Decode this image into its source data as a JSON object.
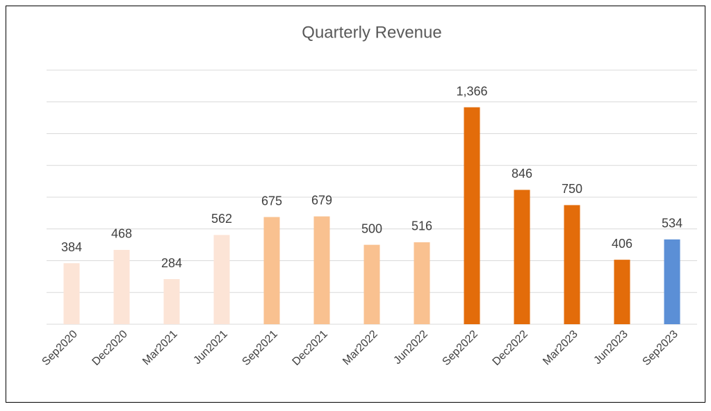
{
  "chart_data": {
    "type": "bar",
    "title": "Quarterly Revenue",
    "categories": [
      "Sep2020",
      "Dec2020",
      "Mar2021",
      "Jun2021",
      "Sep2021",
      "Dec2021",
      "Mar2022",
      "Jun2022",
      "Sep2022",
      "Dec2022",
      "Mar2023",
      "Jun2023",
      "Sep2023"
    ],
    "values": [
      384,
      468,
      284,
      562,
      675,
      679,
      500,
      516,
      1366,
      846,
      750,
      406,
      534
    ],
    "value_labels": [
      "384",
      "468",
      "284",
      "562",
      "675",
      "679",
      "500",
      "516",
      "1,366",
      "846",
      "750",
      "406",
      "534"
    ],
    "colors": [
      "#fce4d6",
      "#fce4d6",
      "#fce4d6",
      "#fce4d6",
      "#f9c190",
      "#f9c190",
      "#f9c190",
      "#f9c190",
      "#e36c0a",
      "#e36c0a",
      "#e36c0a",
      "#e36c0a",
      "#5b8fd6"
    ],
    "ylim": [
      0,
      1600
    ],
    "yticks": [
      0,
      200,
      400,
      600,
      800,
      1000,
      1200,
      1400,
      1600
    ],
    "grid": true
  }
}
